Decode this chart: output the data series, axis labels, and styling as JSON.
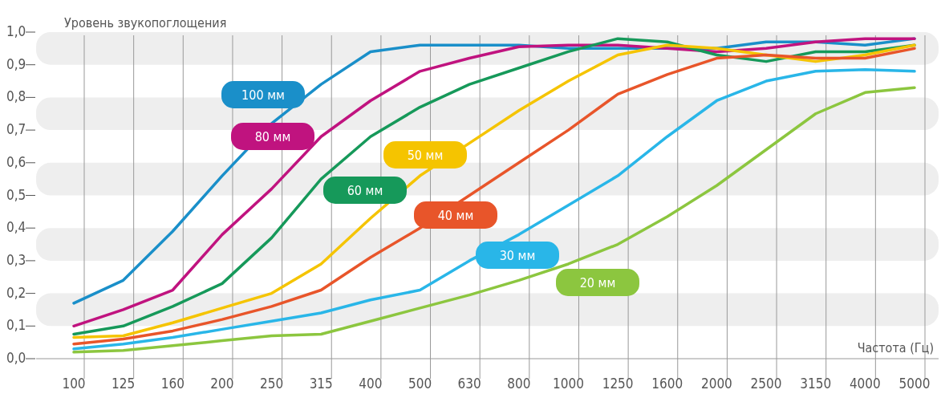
{
  "chart_data": {
    "type": "line",
    "ylabel": "Уровень звукопоглощения",
    "xlabel": "Частота (Гц)",
    "categories": [
      "100",
      "125",
      "160",
      "200",
      "250",
      "315",
      "400",
      "500",
      "630",
      "800",
      "1000",
      "1250",
      "1600",
      "2000",
      "2500",
      "3150",
      "4000",
      "5000"
    ],
    "series": [
      {
        "name": "100 мм",
        "color": "#1a8fc9",
        "values": [
          0.17,
          0.24,
          0.39,
          0.56,
          0.72,
          0.84,
          0.94,
          0.96,
          0.96,
          0.96,
          0.95,
          0.95,
          0.95,
          0.95,
          0.97,
          0.97,
          0.96,
          0.98
        ]
      },
      {
        "name": "80 мм",
        "color": "#c0137f",
        "values": [
          0.1,
          0.15,
          0.21,
          0.38,
          0.52,
          0.68,
          0.79,
          0.88,
          0.92,
          0.955,
          0.96,
          0.96,
          0.95,
          0.94,
          0.95,
          0.97,
          0.98,
          0.98
        ]
      },
      {
        "name": "60 мм",
        "color": "#16995a",
        "values": [
          0.075,
          0.1,
          0.16,
          0.23,
          0.37,
          0.55,
          0.68,
          0.77,
          0.84,
          0.89,
          0.94,
          0.98,
          0.97,
          0.93,
          0.91,
          0.94,
          0.94,
          0.96
        ]
      },
      {
        "name": "50 мм",
        "color": "#f5c400",
        "values": [
          0.065,
          0.07,
          0.11,
          0.155,
          0.2,
          0.29,
          0.43,
          0.56,
          0.66,
          0.76,
          0.85,
          0.93,
          0.96,
          0.95,
          0.93,
          0.91,
          0.93,
          0.96
        ]
      },
      {
        "name": "40 мм",
        "color": "#e8552a",
        "values": [
          0.045,
          0.06,
          0.085,
          0.12,
          0.16,
          0.21,
          0.31,
          0.4,
          0.5,
          0.6,
          0.7,
          0.81,
          0.87,
          0.92,
          0.93,
          0.92,
          0.92,
          0.95
        ]
      },
      {
        "name": "30 мм",
        "color": "#29b6e8",
        "values": [
          0.03,
          0.045,
          0.065,
          0.09,
          0.115,
          0.14,
          0.18,
          0.21,
          0.3,
          0.38,
          0.47,
          0.56,
          0.68,
          0.79,
          0.85,
          0.88,
          0.885,
          0.88
        ]
      },
      {
        "name": "20 мм",
        "color": "#8cc63f",
        "values": [
          0.02,
          0.025,
          0.04,
          0.055,
          0.07,
          0.075,
          0.115,
          0.155,
          0.195,
          0.24,
          0.29,
          0.35,
          0.435,
          0.53,
          0.64,
          0.75,
          0.815,
          0.83
        ]
      }
    ],
    "ylim": [
      0,
      1
    ],
    "yticks": [
      {
        "value": 0,
        "label": "0,0"
      },
      {
        "value": 0.1,
        "label": "0,1"
      },
      {
        "value": 0.2,
        "label": "0,2"
      },
      {
        "value": 0.3,
        "label": "0,3"
      },
      {
        "value": 0.4,
        "label": "0,4"
      },
      {
        "value": 0.5,
        "label": "0,5"
      },
      {
        "value": 0.6,
        "label": "0,6"
      },
      {
        "value": 0.7,
        "label": "0,7"
      },
      {
        "value": 0.8,
        "label": "0,8"
      },
      {
        "value": 0.9,
        "label": "0,9"
      },
      {
        "value": 1,
        "label": "1,0"
      }
    ],
    "bands": [
      {
        "axis": "y",
        "from": 0.1,
        "to": 0.2,
        "color": "#eeeeee"
      },
      {
        "axis": "y",
        "from": 0.3,
        "to": 0.4,
        "color": "#eeeeee"
      },
      {
        "axis": "y",
        "from": 0.5,
        "to": 0.6,
        "color": "#eeeeee"
      },
      {
        "axis": "y",
        "from": 0.7,
        "to": 0.8,
        "color": "#eeeeee"
      },
      {
        "axis": "y",
        "from": 0.9,
        "to": 1,
        "color": "#eeeeee"
      }
    ],
    "grid": "x",
    "legend": false
  }
}
